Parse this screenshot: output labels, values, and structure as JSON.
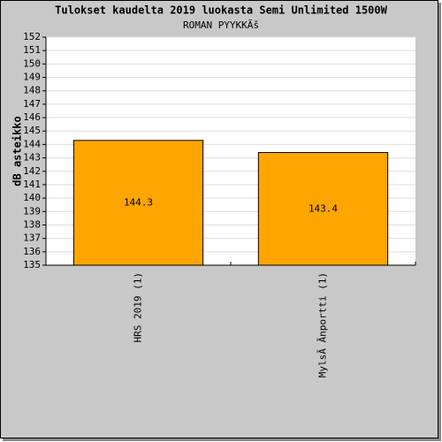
{
  "chart_data": {
    "type": "bar",
    "title": "Tulokset kaudelta 2019 luokasta Semi Unlimited 1500W",
    "subtitle": "ROMAN PYYKKÃš",
    "y_label": "dB asteikko",
    "categories": [
      "HRS 2019 (1)",
      "MylsÃ Ãnportti (1)"
    ],
    "values": [
      144.3,
      143.4
    ],
    "color": "#ffa500",
    "ylim": [
      135,
      152
    ],
    "yticks": [
      135,
      136,
      137,
      138,
      139,
      140,
      141,
      142,
      143,
      144,
      145,
      146,
      147,
      148,
      149,
      150,
      151,
      152
    ],
    "grid": true
  }
}
